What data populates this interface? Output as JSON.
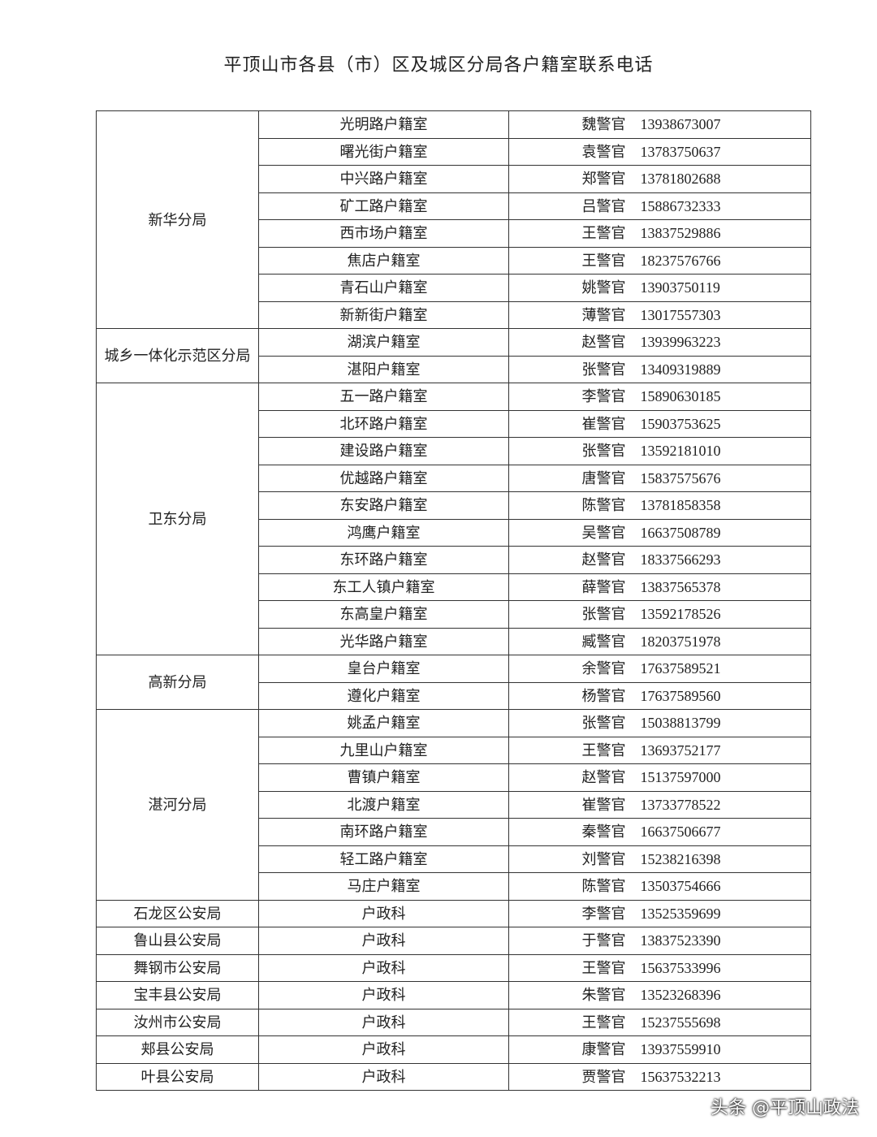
{
  "title": "平顶山市各县（市）区及城区分局各户籍室联系电话",
  "groups": [
    {
      "name": "新华分局",
      "rows": [
        [
          "光明路户籍室",
          "魏警官",
          "13938673007"
        ],
        [
          "曙光街户籍室",
          "袁警官",
          "13783750637"
        ],
        [
          "中兴路户籍室",
          "郑警官",
          "13781802688"
        ],
        [
          "矿工路户籍室",
          "吕警官",
          "15886732333"
        ],
        [
          "西市场户籍室",
          "王警官",
          "13837529886"
        ],
        [
          "焦店户籍室",
          "王警官",
          "18237576766"
        ],
        [
          "青石山户籍室",
          "姚警官",
          "13903750119"
        ],
        [
          "新新街户籍室",
          "薄警官",
          "13017557303"
        ]
      ]
    },
    {
      "name": "城乡一体化示范区分局",
      "rows": [
        [
          "湖滨户籍室",
          "赵警官",
          "13939963223"
        ],
        [
          "湛阳户籍室",
          "张警官",
          "13409319889"
        ]
      ]
    },
    {
      "name": "卫东分局",
      "rows": [
        [
          "五一路户籍室",
          "李警官",
          "15890630185"
        ],
        [
          "北环路户籍室",
          "崔警官",
          "15903753625"
        ],
        [
          "建设路户籍室",
          "张警官",
          "13592181010"
        ],
        [
          "优越路户籍室",
          "唐警官",
          "15837575676"
        ],
        [
          "东安路户籍室",
          "陈警官",
          "13781858358"
        ],
        [
          "鸿鹰户籍室",
          "吴警官",
          "16637508789"
        ],
        [
          "东环路户籍室",
          "赵警官",
          "18337566293"
        ],
        [
          "东工人镇户籍室",
          "薛警官",
          "13837565378"
        ],
        [
          "东高皇户籍室",
          "张警官",
          "13592178526"
        ],
        [
          "光华路户籍室",
          "臧警官",
          "18203751978"
        ]
      ]
    },
    {
      "name": "高新分局",
      "rows": [
        [
          "皇台户籍室",
          "余警官",
          "17637589521"
        ],
        [
          "遵化户籍室",
          "杨警官",
          "17637589560"
        ]
      ]
    },
    {
      "name": "湛河分局",
      "rows": [
        [
          "姚孟户籍室",
          "张警官",
          "15038813799"
        ],
        [
          "九里山户籍室",
          "王警官",
          "13693752177"
        ],
        [
          "曹镇户籍室",
          "赵警官",
          "15137597000"
        ],
        [
          "北渡户籍室",
          "崔警官",
          "13733778522"
        ],
        [
          "南环路户籍室",
          "秦警官",
          "16637506677"
        ],
        [
          "轻工路户籍室",
          "刘警官",
          "15238216398"
        ],
        [
          "马庄户籍室",
          "陈警官",
          "13503754666"
        ]
      ]
    },
    {
      "name": "石龙区公安局",
      "rows": [
        [
          "户政科",
          "李警官",
          "13525359699"
        ]
      ]
    },
    {
      "name": "鲁山县公安局",
      "rows": [
        [
          "户政科",
          "于警官",
          "13837523390"
        ]
      ]
    },
    {
      "name": "舞钢市公安局",
      "rows": [
        [
          "户政科",
          "王警官",
          "15637533996"
        ]
      ]
    },
    {
      "name": "宝丰县公安局",
      "rows": [
        [
          "户政科",
          "朱警官",
          "13523268396"
        ]
      ]
    },
    {
      "name": "汝州市公安局",
      "rows": [
        [
          "户政科",
          "王警官",
          "15237555698"
        ]
      ]
    },
    {
      "name": "郏县公安局",
      "rows": [
        [
          "户政科",
          "康警官",
          "13937559910"
        ]
      ]
    },
    {
      "name": "叶县公安局",
      "rows": [
        [
          "户政科",
          "贾警官",
          "15637532213"
        ]
      ]
    }
  ],
  "watermark": "头条 @平顶山政法"
}
